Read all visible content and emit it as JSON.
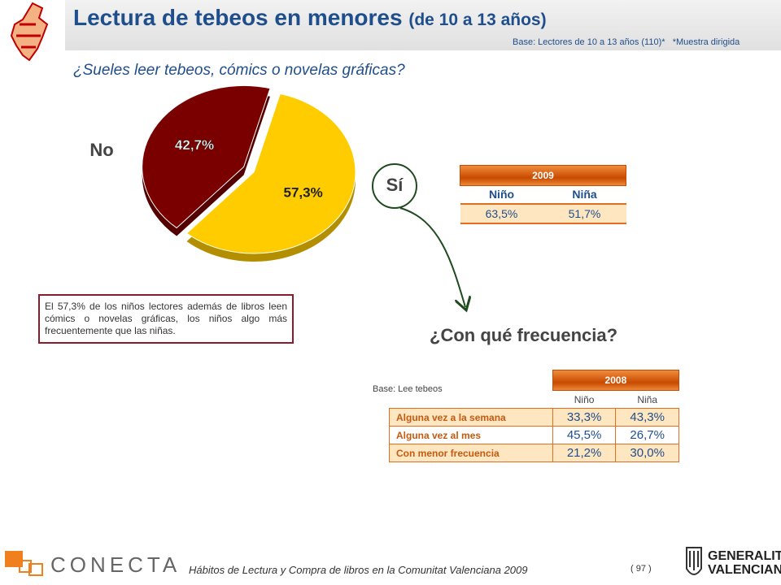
{
  "header": {
    "title": "Lectura de tebeos en menores",
    "title_suffix": "(de 10 a 13 años)",
    "base": "Base: Lectores de 10 a 13 años (110)*",
    "note": "*Muestra dirigida"
  },
  "question": "¿Sueles leer tebeos, cómics o novelas gráficas?",
  "chart_data": {
    "type": "pie",
    "categories": [
      "No",
      "Sí"
    ],
    "values": [
      42.7,
      57.3
    ],
    "value_labels": [
      "42,7%",
      "57,3%"
    ],
    "colors": [
      "#7a0000",
      "#ffcc00"
    ]
  },
  "summary": "El 57,3% de los niños lectores además de libros leen cómics o novelas gráficas, los niños algo más frecuentemente que las niñas.",
  "table_2009": {
    "year": "2009",
    "columns": [
      "Niño",
      "Niña"
    ],
    "rows": [
      [
        "63,5%",
        "51,7%"
      ]
    ]
  },
  "frequency_question": "¿Con qué frecuencia?",
  "table_2008": {
    "base": "Base: Lee tebeos",
    "year": "2008",
    "columns": [
      "Niño",
      "Niña"
    ],
    "rows": [
      {
        "label": "Alguna vez a la semana",
        "values": [
          "33,3%",
          "43,3%"
        ]
      },
      {
        "label": "Alguna vez al mes",
        "values": [
          "45,5%",
          "26,7%"
        ]
      },
      {
        "label": "Con menor frecuencia",
        "values": [
          "21,2%",
          "30,0%"
        ]
      }
    ]
  },
  "footer": {
    "brand": "CONECTA",
    "text": "Hábitos de Lectura y Compra de libros en la Comunitat Valenciana 2009",
    "page": "( 97 )",
    "logo_line1": "GENERALITAT",
    "logo_line2": "VALENCIANA"
  }
}
